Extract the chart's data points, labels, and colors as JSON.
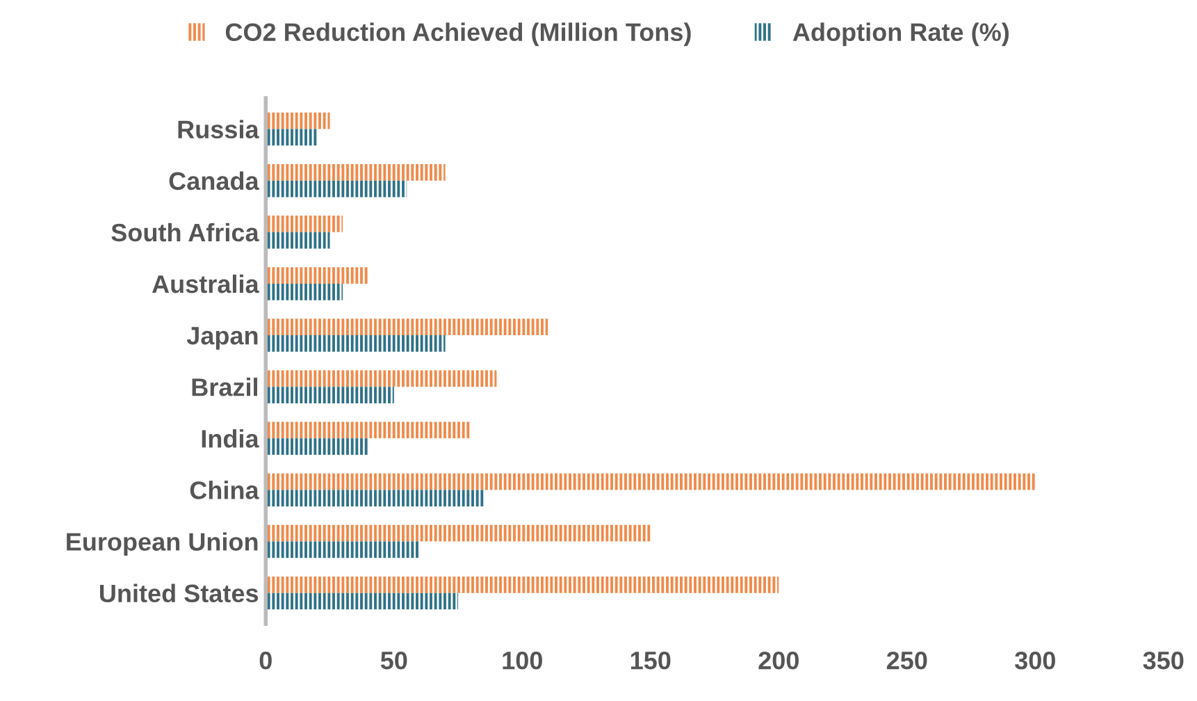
{
  "chart_data": {
    "type": "bar",
    "orientation": "horizontal",
    "categories": [
      "Russia",
      "Canada",
      "South Africa",
      "Australia",
      "Japan",
      "Brazil",
      "India",
      "China",
      "European Union",
      "United States"
    ],
    "series": [
      {
        "name": "CO2 Reduction Achieved (Million Tons)",
        "color": "#f08a4b",
        "values": [
          25,
          70,
          30,
          40,
          110,
          90,
          80,
          300,
          150,
          200
        ]
      },
      {
        "name": "Adoption Rate (%)",
        "color": "#2f7189",
        "values": [
          20,
          55,
          25,
          30,
          70,
          50,
          40,
          85,
          60,
          75
        ]
      }
    ],
    "xlim": [
      0,
      350
    ],
    "xticks": [
      0,
      50,
      100,
      150,
      200,
      250,
      300,
      350
    ],
    "grid": false,
    "legend": "top"
  }
}
